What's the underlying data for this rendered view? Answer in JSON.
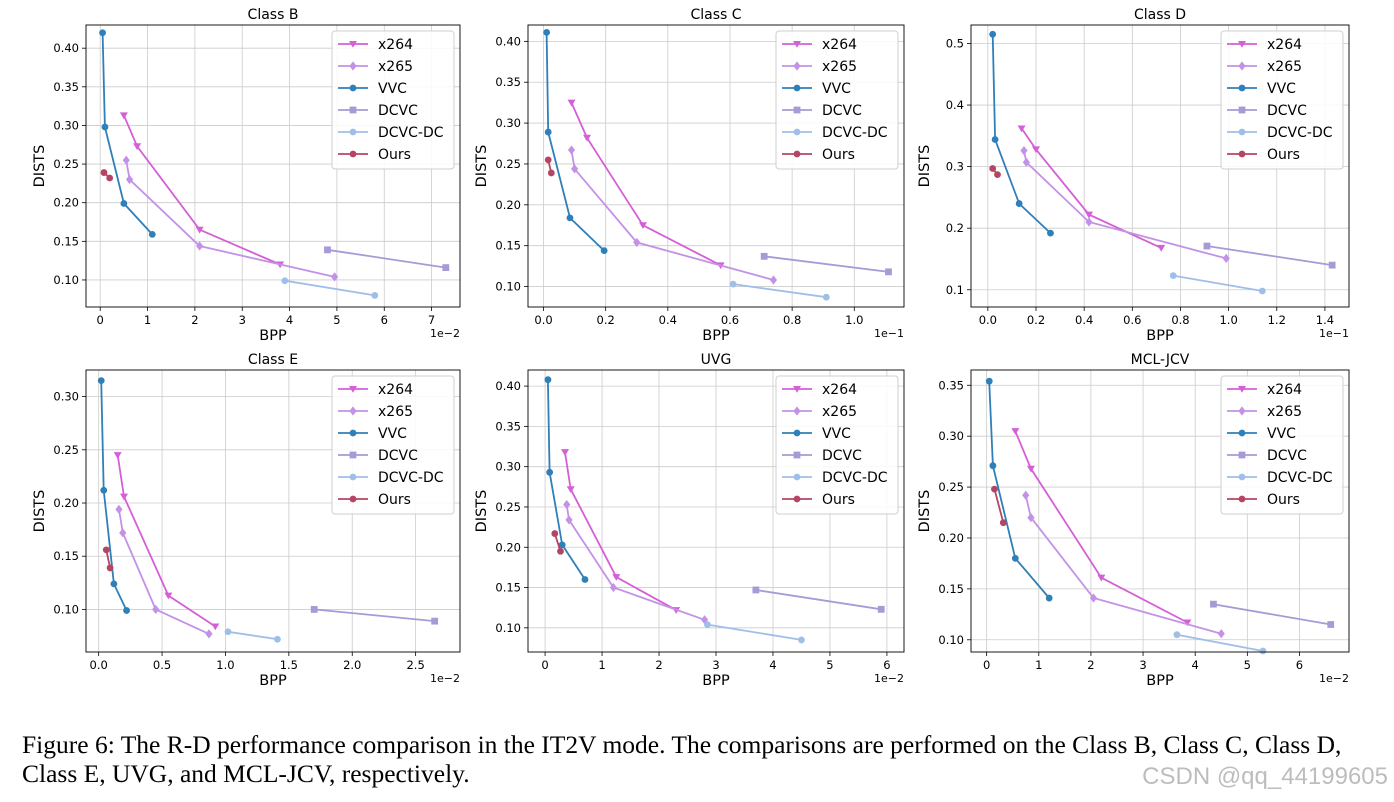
{
  "figure": {
    "caption": "Figure 6: The R-D performance comparison in the IT2V mode. The comparisons are performed on the Class B, Class C, Class D, Class E, UVG, and MCL-JCV, respectively.",
    "watermark": "CSDN @qq_44199605"
  },
  "styles": {
    "x264": {
      "color": "#d45fd6",
      "marker": "tri-down"
    },
    "x265": {
      "color": "#c392e6",
      "marker": "diamond"
    },
    "VVC": {
      "color": "#2f7fb9",
      "marker": "circle"
    },
    "DCVC": {
      "color": "#a89ad6",
      "marker": "square"
    },
    "DCVC-DC": {
      "color": "#9fbfe9",
      "marker": "circle"
    },
    "Ours": {
      "color": "#b44664",
      "marker": "circle"
    }
  },
  "chart_data": [
    {
      "type": "line",
      "title": "Class B",
      "xlabel": "BPP",
      "ylabel": "DISTS",
      "multiplier": "1e−2",
      "xlim": [
        -0.3,
        7.6
      ],
      "ylim": [
        0.065,
        0.43
      ],
      "xticks": [
        0,
        1,
        2,
        3,
        4,
        5,
        6,
        7
      ],
      "xtick_labels": [
        "0",
        "1",
        "2",
        "3",
        "4",
        "5",
        "6",
        "7"
      ],
      "yticks": [
        0.1,
        0.15,
        0.2,
        0.25,
        0.3,
        0.35,
        0.4
      ],
      "ytick_labels": [
        "0.10",
        "0.15",
        "0.20",
        "0.25",
        "0.30",
        "0.35",
        "0.40"
      ],
      "legend": "top-right",
      "series": [
        {
          "name": "x264",
          "points": [
            [
              0.5,
              0.313
            ],
            [
              0.78,
              0.273
            ],
            [
              2.1,
              0.165
            ],
            [
              3.8,
              0.12
            ]
          ]
        },
        {
          "name": "x265",
          "points": [
            [
              0.55,
              0.255
            ],
            [
              0.62,
              0.23
            ],
            [
              2.1,
              0.144
            ],
            [
              4.95,
              0.104
            ]
          ]
        },
        {
          "name": "VVC",
          "points": [
            [
              0.05,
              0.42
            ],
            [
              0.1,
              0.298
            ],
            [
              0.5,
              0.199
            ],
            [
              1.1,
              0.159
            ]
          ]
        },
        {
          "name": "DCVC",
          "points": [
            [
              4.8,
              0.139
            ],
            [
              7.3,
              0.116
            ]
          ]
        },
        {
          "name": "DCVC-DC",
          "points": [
            [
              3.9,
              0.099
            ],
            [
              5.8,
              0.08
            ]
          ]
        },
        {
          "name": "Ours",
          "points": [
            [
              0.08,
              0.239
            ],
            [
              0.2,
              0.232
            ]
          ]
        }
      ]
    },
    {
      "type": "line",
      "title": "Class C",
      "xlabel": "BPP",
      "ylabel": "DISTS",
      "multiplier": "1e−1",
      "xlim": [
        -0.05,
        1.16
      ],
      "ylim": [
        0.075,
        0.42
      ],
      "xticks": [
        0,
        0.2,
        0.4,
        0.6,
        0.8,
        1.0
      ],
      "xtick_labels": [
        "0.0",
        "0.2",
        "0.4",
        "0.6",
        "0.8",
        "1.0"
      ],
      "yticks": [
        0.1,
        0.15,
        0.2,
        0.25,
        0.3,
        0.35,
        0.4
      ],
      "ytick_labels": [
        "0.10",
        "0.15",
        "0.20",
        "0.25",
        "0.30",
        "0.35",
        "0.40"
      ],
      "legend": "top-right",
      "series": [
        {
          "name": "x264",
          "points": [
            [
              0.09,
              0.325
            ],
            [
              0.14,
              0.282
            ],
            [
              0.32,
              0.175
            ],
            [
              0.57,
              0.126
            ]
          ]
        },
        {
          "name": "x265",
          "points": [
            [
              0.09,
              0.267
            ],
            [
              0.1,
              0.244
            ],
            [
              0.3,
              0.154
            ],
            [
              0.74,
              0.108
            ]
          ]
        },
        {
          "name": "VVC",
          "points": [
            [
              0.01,
              0.411
            ],
            [
              0.015,
              0.289
            ],
            [
              0.085,
              0.184
            ],
            [
              0.195,
              0.144
            ]
          ]
        },
        {
          "name": "DCVC",
          "points": [
            [
              0.71,
              0.137
            ],
            [
              1.11,
              0.118
            ]
          ]
        },
        {
          "name": "DCVC-DC",
          "points": [
            [
              0.61,
              0.103
            ],
            [
              0.91,
              0.087
            ]
          ]
        },
        {
          "name": "Ours",
          "points": [
            [
              0.015,
              0.255
            ],
            [
              0.025,
              0.239
            ]
          ]
        }
      ]
    },
    {
      "type": "line",
      "title": "Class D",
      "xlabel": "BPP",
      "ylabel": "DISTS",
      "multiplier": "1e−1",
      "xlim": [
        -0.07,
        1.5
      ],
      "ylim": [
        0.072,
        0.53
      ],
      "xticks": [
        0,
        0.2,
        0.4,
        0.6,
        0.8,
        1.0,
        1.2,
        1.4
      ],
      "xtick_labels": [
        "0.0",
        "0.2",
        "0.4",
        "0.6",
        "0.8",
        "1.0",
        "1.2",
        "1.4"
      ],
      "yticks": [
        0.1,
        0.2,
        0.3,
        0.4,
        0.5
      ],
      "ytick_labels": [
        "0.1",
        "0.2",
        "0.3",
        "0.4",
        "0.5"
      ],
      "legend": "top-right",
      "series": [
        {
          "name": "x264",
          "points": [
            [
              0.14,
              0.362
            ],
            [
              0.2,
              0.328
            ],
            [
              0.42,
              0.222
            ],
            [
              0.72,
              0.168
            ]
          ]
        },
        {
          "name": "x265",
          "points": [
            [
              0.15,
              0.326
            ],
            [
              0.16,
              0.307
            ],
            [
              0.42,
              0.21
            ],
            [
              0.99,
              0.151
            ]
          ]
        },
        {
          "name": "VVC",
          "points": [
            [
              0.02,
              0.515
            ],
            [
              0.03,
              0.344
            ],
            [
              0.13,
              0.24
            ],
            [
              0.26,
              0.192
            ]
          ]
        },
        {
          "name": "DCVC",
          "points": [
            [
              0.91,
              0.171
            ],
            [
              1.43,
              0.14
            ]
          ]
        },
        {
          "name": "DCVC-DC",
          "points": [
            [
              0.77,
              0.123
            ],
            [
              1.14,
              0.098
            ]
          ]
        },
        {
          "name": "Ours",
          "points": [
            [
              0.02,
              0.297
            ],
            [
              0.04,
              0.287
            ]
          ]
        }
      ]
    },
    {
      "type": "line",
      "title": "Class E",
      "xlabel": "BPP",
      "ylabel": "DISTS",
      "multiplier": "1e−2",
      "xlim": [
        -0.1,
        2.85
      ],
      "ylim": [
        0.06,
        0.325
      ],
      "xticks": [
        0,
        0.5,
        1.0,
        1.5,
        2.0,
        2.5
      ],
      "xtick_labels": [
        "0.0",
        "0.5",
        "1.0",
        "1.5",
        "2.0",
        "2.5"
      ],
      "yticks": [
        0.1,
        0.15,
        0.2,
        0.25,
        0.3
      ],
      "ytick_labels": [
        "0.10",
        "0.15",
        "0.20",
        "0.25",
        "0.30"
      ],
      "legend": "top-right",
      "series": [
        {
          "name": "x264",
          "points": [
            [
              0.15,
              0.245
            ],
            [
              0.2,
              0.206
            ],
            [
              0.55,
              0.113
            ],
            [
              0.92,
              0.084
            ]
          ]
        },
        {
          "name": "x265",
          "points": [
            [
              0.16,
              0.194
            ],
            [
              0.19,
              0.172
            ],
            [
              0.45,
              0.1
            ],
            [
              0.87,
              0.077
            ]
          ]
        },
        {
          "name": "VVC",
          "points": [
            [
              0.02,
              0.315
            ],
            [
              0.04,
              0.212
            ],
            [
              0.12,
              0.124
            ],
            [
              0.22,
              0.099
            ]
          ]
        },
        {
          "name": "DCVC",
          "points": [
            [
              1.7,
              0.1
            ],
            [
              2.65,
              0.089
            ]
          ]
        },
        {
          "name": "DCVC-DC",
          "points": [
            [
              1.02,
              0.079
            ],
            [
              1.41,
              0.072
            ]
          ]
        },
        {
          "name": "Ours",
          "points": [
            [
              0.06,
              0.156
            ],
            [
              0.09,
              0.139
            ]
          ]
        }
      ]
    },
    {
      "type": "line",
      "title": "UVG",
      "xlabel": "BPP",
      "ylabel": "DISTS",
      "multiplier": "1e−2",
      "xlim": [
        -0.3,
        6.3
      ],
      "ylim": [
        0.07,
        0.42
      ],
      "xticks": [
        0,
        1,
        2,
        3,
        4,
        5,
        6
      ],
      "xtick_labels": [
        "0",
        "1",
        "2",
        "3",
        "4",
        "5",
        "6"
      ],
      "yticks": [
        0.1,
        0.15,
        0.2,
        0.25,
        0.3,
        0.35,
        0.4
      ],
      "ytick_labels": [
        "0.10",
        "0.15",
        "0.20",
        "0.25",
        "0.30",
        "0.35",
        "0.40"
      ],
      "legend": "top-right",
      "series": [
        {
          "name": "x264",
          "points": [
            [
              0.35,
              0.318
            ],
            [
              0.45,
              0.272
            ],
            [
              1.25,
              0.163
            ],
            [
              2.3,
              0.122
            ]
          ]
        },
        {
          "name": "x265",
          "points": [
            [
              0.38,
              0.253
            ],
            [
              0.42,
              0.234
            ],
            [
              1.2,
              0.15
            ],
            [
              2.8,
              0.11
            ]
          ]
        },
        {
          "name": "VVC",
          "points": [
            [
              0.05,
              0.408
            ],
            [
              0.08,
              0.293
            ],
            [
              0.3,
              0.203
            ],
            [
              0.7,
              0.16
            ]
          ]
        },
        {
          "name": "DCVC",
          "points": [
            [
              3.7,
              0.147
            ],
            [
              5.9,
              0.123
            ]
          ]
        },
        {
          "name": "DCVC-DC",
          "points": [
            [
              2.85,
              0.104
            ],
            [
              4.5,
              0.085
            ]
          ]
        },
        {
          "name": "Ours",
          "points": [
            [
              0.17,
              0.217
            ],
            [
              0.27,
              0.195
            ]
          ]
        }
      ]
    },
    {
      "type": "line",
      "title": "MCL-JCV",
      "xlabel": "BPP",
      "ylabel": "DISTS",
      "multiplier": "1e−2",
      "xlim": [
        -0.3,
        6.95
      ],
      "ylim": [
        0.088,
        0.365
      ],
      "xticks": [
        0,
        1,
        2,
        3,
        4,
        5,
        6
      ],
      "xtick_labels": [
        "0",
        "1",
        "2",
        "3",
        "4",
        "5",
        "6"
      ],
      "yticks": [
        0.1,
        0.15,
        0.2,
        0.25,
        0.3,
        0.35
      ],
      "ytick_labels": [
        "0.10",
        "0.15",
        "0.20",
        "0.25",
        "0.30",
        "0.35"
      ],
      "legend": "top-right",
      "series": [
        {
          "name": "x264",
          "points": [
            [
              0.55,
              0.305
            ],
            [
              0.85,
              0.268
            ],
            [
              2.2,
              0.161
            ],
            [
              3.85,
              0.117
            ]
          ]
        },
        {
          "name": "x265",
          "points": [
            [
              0.75,
              0.242
            ],
            [
              0.85,
              0.22
            ],
            [
              2.05,
              0.141
            ],
            [
              4.5,
              0.106
            ]
          ]
        },
        {
          "name": "VVC",
          "points": [
            [
              0.05,
              0.354
            ],
            [
              0.12,
              0.271
            ],
            [
              0.55,
              0.18
            ],
            [
              1.2,
              0.141
            ]
          ]
        },
        {
          "name": "DCVC",
          "points": [
            [
              4.35,
              0.135
            ],
            [
              6.6,
              0.115
            ]
          ]
        },
        {
          "name": "DCVC-DC",
          "points": [
            [
              3.65,
              0.105
            ],
            [
              5.3,
              0.089
            ]
          ]
        },
        {
          "name": "Ours",
          "points": [
            [
              0.15,
              0.248
            ],
            [
              0.32,
              0.215
            ]
          ]
        }
      ]
    }
  ]
}
